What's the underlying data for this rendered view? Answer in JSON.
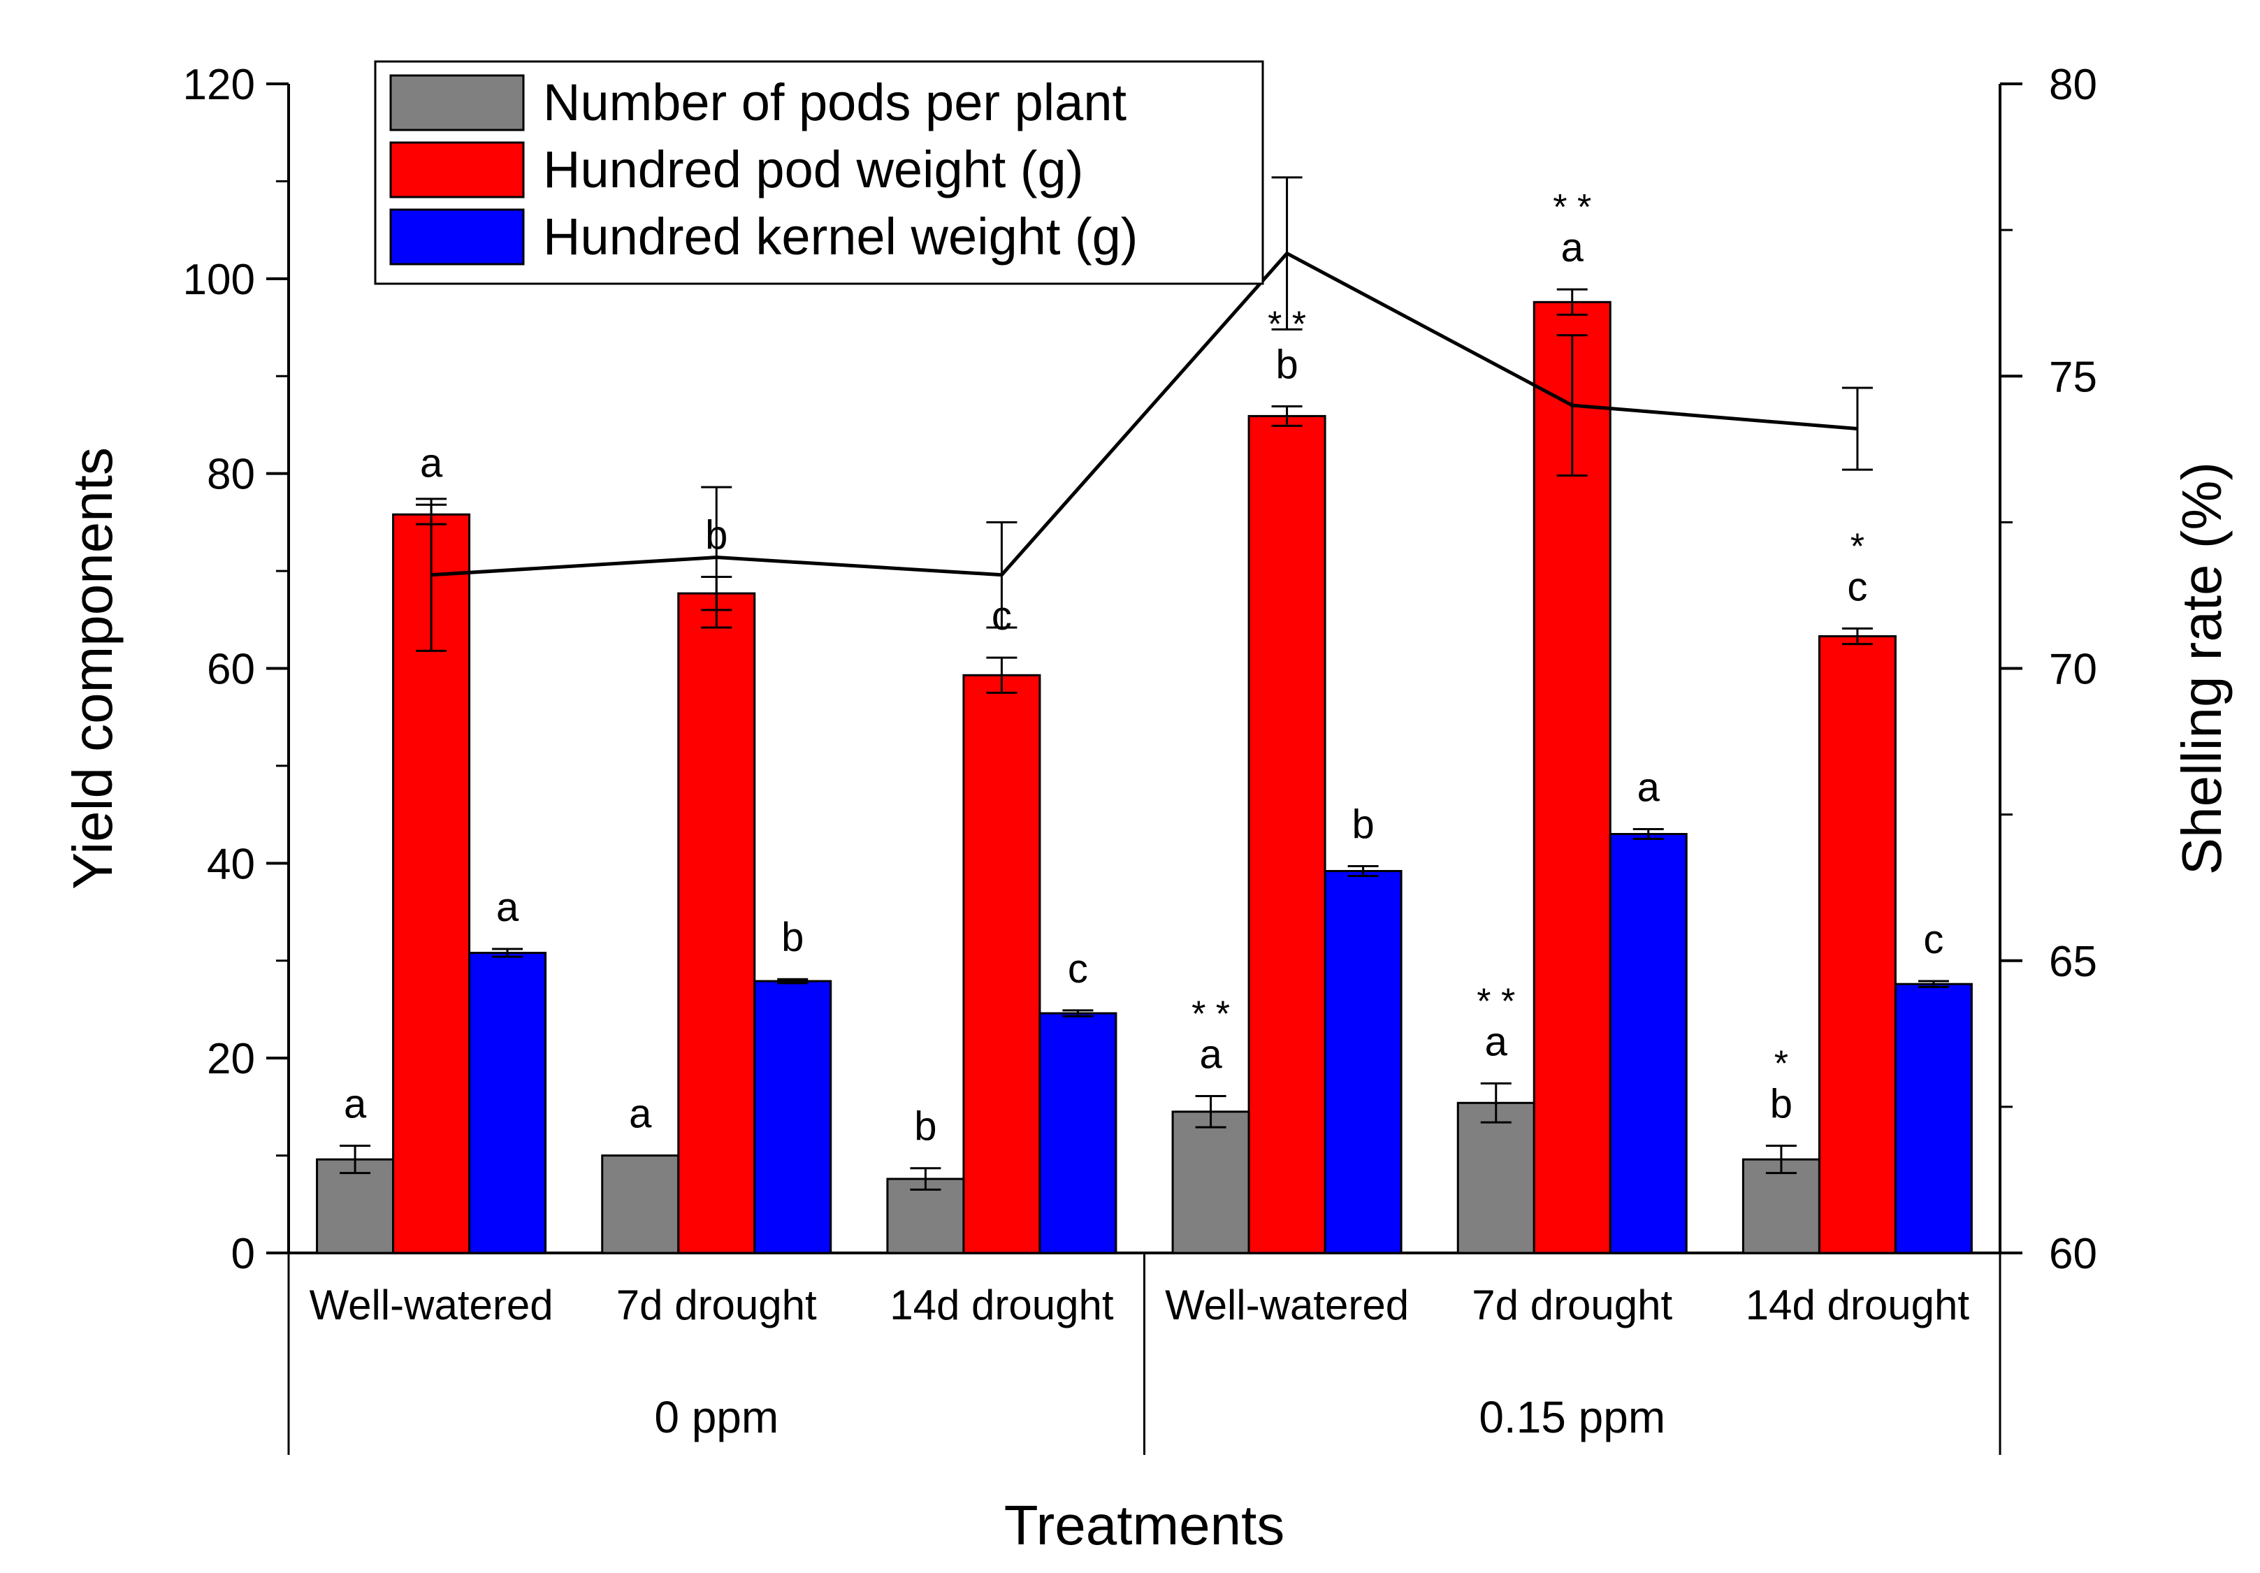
{
  "chart_data": {
    "type": "bar",
    "xlabel": "Treatments",
    "ylabel": "Yield components",
    "y2label": "Shelling rate (%)",
    "ylim": [
      0,
      120
    ],
    "y2lim": [
      60,
      80
    ],
    "yticks": [
      0,
      20,
      40,
      60,
      80,
      100,
      120
    ],
    "y2ticks": [
      60,
      65,
      70,
      75,
      80
    ],
    "legend_position": "top-left",
    "grid": false,
    "categories": [
      "Well-watered",
      "7d drought",
      "14d drought",
      "Well-watered",
      "7d drought",
      "14d drought"
    ],
    "groups": [
      {
        "label": "0 ppm",
        "categories": [
          0,
          1,
          2
        ]
      },
      {
        "label": "0.15 ppm",
        "categories": [
          3,
          4,
          5
        ]
      }
    ],
    "series": [
      {
        "name": "Number of pods per plant",
        "color": "#808080",
        "values": [
          9.6,
          10.0,
          7.6,
          14.5,
          15.4,
          9.6
        ],
        "errors": [
          1.4,
          0,
          1.1,
          1.6,
          2.0,
          1.4
        ],
        "letters": [
          "a",
          "a",
          "b",
          "a",
          "a",
          "b"
        ],
        "stars": [
          "",
          "",
          "",
          "* *",
          "* *",
          "*"
        ]
      },
      {
        "name": "Hundred pod weight (g)",
        "color": "#ff0000",
        "values": [
          75.8,
          67.7,
          59.3,
          85.9,
          97.6,
          63.3
        ],
        "errors": [
          1.0,
          1.7,
          1.8,
          1.0,
          1.3,
          0.8
        ],
        "letters": [
          "a",
          "b",
          "c",
          "b",
          "a",
          "c"
        ],
        "stars": [
          "",
          "",
          "",
          "* *",
          "* *",
          "*"
        ]
      },
      {
        "name": "Hundred kernel weight (g)",
        "color": "#0000ff",
        "values": [
          30.8,
          27.9,
          24.6,
          39.2,
          43.0,
          27.6
        ],
        "errors": [
          0.4,
          0.2,
          0.3,
          0.5,
          0.5,
          0.3
        ],
        "letters": [
          "a",
          "b",
          "c",
          "b",
          "a",
          "c"
        ],
        "stars": [
          "",
          "",
          "",
          "",
          "",
          ""
        ]
      }
    ],
    "line": {
      "name": "Shelling rate",
      "axis": "right",
      "color": "#000000",
      "values": [
        71.6,
        71.9,
        71.6,
        77.1,
        74.5,
        74.1
      ],
      "errors": [
        1.3,
        1.2,
        0.9,
        1.3,
        1.2,
        0.7
      ]
    }
  }
}
